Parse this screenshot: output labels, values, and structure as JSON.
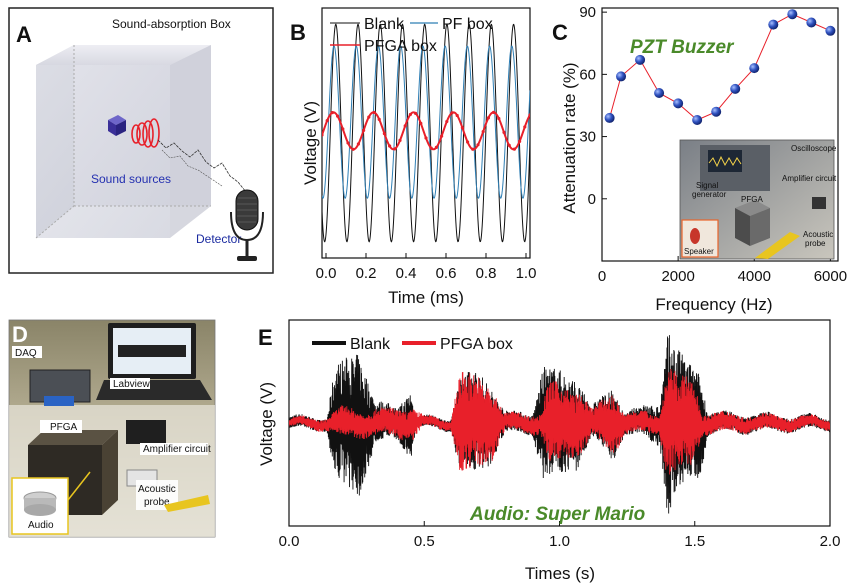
{
  "panels": {
    "A": {
      "label": "A",
      "title": "Sound-absorption Box",
      "source_label": "Sound sources",
      "detector_label": "Detector"
    },
    "B": {
      "label": "B",
      "inset_title": "",
      "legend": [
        "Blank",
        "PF box",
        "PFGA box"
      ]
    },
    "C": {
      "label": "C",
      "inset_title": "PZT Buzzer",
      "photo_labels": {
        "oscilloscope": "Oscilloscope",
        "signal": "Signal",
        "generator": "generator",
        "amplifier": "Amplifier circuit",
        "pfga": "PFGA",
        "speaker": "Speaker",
        "acoustic": "Acoustic",
        "probe": "probe"
      }
    },
    "D": {
      "label": "D",
      "photo_labels": {
        "daq": "DAQ",
        "labview": "Labview",
        "pfga": "PFGA",
        "amplifier": "Amplifier circuit",
        "acoustic": "Acoustic",
        "probe": "probe",
        "audio": "Audio"
      }
    },
    "E": {
      "label": "E",
      "inset_title": "Audio: Super Mario"
    }
  },
  "colors": {
    "blank": "#111111",
    "pf": "#2f7fb5",
    "pfga": "#e8202a",
    "points": "#2a4bb0",
    "connector": "#e8202a",
    "green": "#4a8a2a"
  },
  "chart_data": [
    {
      "id": "B",
      "type": "line",
      "title": "",
      "xlabel": "Time (ms)",
      "ylabel": "Voltage (V)",
      "xlim": [
        -0.02,
        1.02
      ],
      "ylim": [
        -1.15,
        1.15
      ],
      "xticks": [
        "0.0",
        "0.2",
        "0.4",
        "0.6",
        "0.8",
        "1.0"
      ],
      "xtick_values": [
        0.0,
        0.2,
        0.4,
        0.6,
        0.8,
        1.0
      ],
      "yticks_shown": false,
      "series": [
        {
          "name": "Blank",
          "function": "sine",
          "amplitude": 1.0,
          "frequency_khz": 9,
          "phase": -1.2,
          "offset": 0
        },
        {
          "name": "PF box",
          "function": "sine",
          "amplitude": 0.7,
          "frequency_khz": 9,
          "phase": -0.7,
          "offset": 0.1
        },
        {
          "name": "PFGA box",
          "function": "sine",
          "amplitude": 0.17,
          "frequency_khz": 5,
          "phase": 0.4,
          "offset": 0.02,
          "markers": true
        }
      ]
    },
    {
      "id": "C",
      "type": "scatter",
      "title": "PZT Buzzer",
      "xlabel": "Frequency (Hz)",
      "ylabel": "Attenuation rate (%)",
      "xlim": [
        0,
        6200
      ],
      "ylim": [
        -30,
        92
      ],
      "xticks": [
        "0",
        "2000",
        "4000",
        "6000"
      ],
      "xtick_values": [
        0,
        2000,
        4000,
        6000
      ],
      "yticks": [
        "0",
        "30",
        "60",
        "90"
      ],
      "ytick_values": [
        0,
        30,
        60,
        90
      ],
      "x": [
        200,
        500,
        1000,
        1500,
        2000,
        2500,
        3000,
        3500,
        4000,
        4500,
        5000,
        5500,
        6000
      ],
      "y": [
        39,
        59,
        67,
        51,
        46,
        38,
        42,
        53,
        63,
        84,
        89,
        85,
        81
      ]
    },
    {
      "id": "E",
      "type": "line",
      "title": "Audio: Super Mario",
      "xlabel": "Times (s)",
      "ylabel": "Voltage (V)",
      "xlim": [
        0.0,
        2.0
      ],
      "ylim": [
        -1.0,
        1.0
      ],
      "xticks": [
        "0.0",
        "0.5",
        "1.0",
        "1.5",
        "2.0"
      ],
      "xtick_values": [
        0.0,
        0.5,
        1.0,
        1.5,
        2.0
      ],
      "series": [
        {
          "name": "Blank",
          "envelope": [
            [
              0.0,
              0.06
            ],
            [
              0.14,
              0.06
            ],
            [
              0.17,
              0.55
            ],
            [
              0.26,
              0.7
            ],
            [
              0.32,
              0.2
            ],
            [
              0.4,
              0.15
            ],
            [
              0.45,
              0.35
            ],
            [
              0.47,
              0.05
            ],
            [
              0.6,
              0.06
            ],
            [
              0.63,
              0.45
            ],
            [
              0.7,
              0.5
            ],
            [
              0.74,
              0.4
            ],
            [
              0.8,
              0.1
            ],
            [
              0.9,
              0.1
            ],
            [
              0.94,
              0.55
            ],
            [
              1.0,
              0.5
            ],
            [
              1.06,
              0.45
            ],
            [
              1.12,
              0.15
            ],
            [
              1.2,
              0.35
            ],
            [
              1.24,
              0.1
            ],
            [
              1.37,
              0.2
            ],
            [
              1.4,
              0.9
            ],
            [
              1.45,
              0.65
            ],
            [
              1.52,
              0.5
            ],
            [
              1.55,
              0.1
            ],
            [
              2.0,
              0.06
            ]
          ]
        },
        {
          "name": "PFGA box",
          "envelope": [
            [
              0.0,
              0.04
            ],
            [
              0.14,
              0.06
            ],
            [
              0.2,
              0.15
            ],
            [
              0.3,
              0.12
            ],
            [
              0.46,
              0.15
            ],
            [
              0.5,
              0.05
            ],
            [
              0.6,
              0.05
            ],
            [
              0.63,
              0.5
            ],
            [
              0.7,
              0.45
            ],
            [
              0.75,
              0.35
            ],
            [
              0.8,
              0.08
            ],
            [
              0.93,
              0.1
            ],
            [
              0.96,
              0.4
            ],
            [
              1.02,
              0.35
            ],
            [
              1.08,
              0.3
            ],
            [
              1.12,
              0.12
            ],
            [
              1.2,
              0.3
            ],
            [
              1.24,
              0.1
            ],
            [
              1.37,
              0.1
            ],
            [
              1.4,
              0.55
            ],
            [
              1.45,
              0.45
            ],
            [
              1.5,
              0.4
            ],
            [
              1.53,
              0.1
            ],
            [
              2.0,
              0.05
            ]
          ]
        }
      ]
    }
  ]
}
